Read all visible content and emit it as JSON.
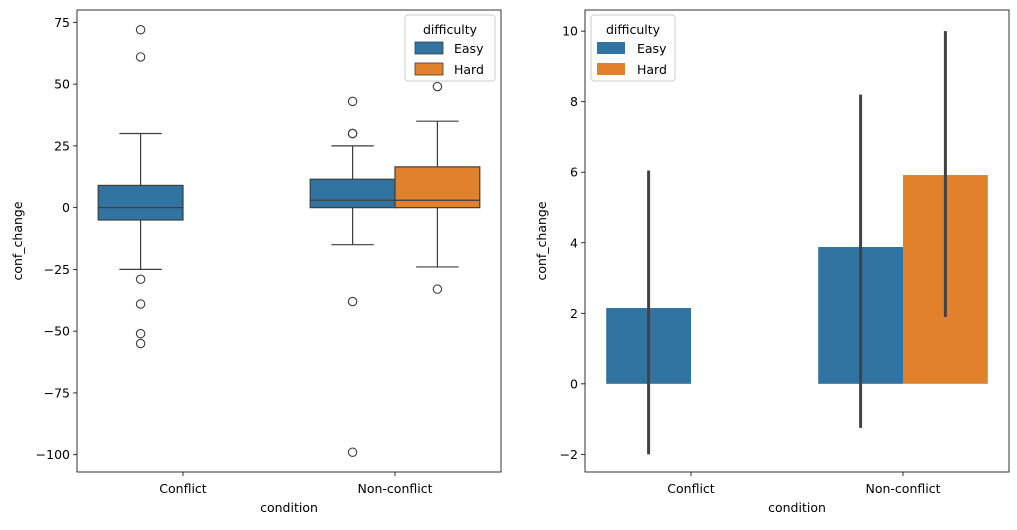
{
  "colors": {
    "Easy": "#3274a1",
    "Hard": "#e1812c",
    "ci": "#424242",
    "line": "#3d3d3d"
  },
  "chart_data": [
    {
      "type": "box",
      "xlabel": "condition",
      "ylabel": "conf_change",
      "ylim": [
        -107,
        80
      ],
      "yticks": [
        75,
        50,
        25,
        0,
        -25,
        -50,
        -75,
        -100
      ],
      "ytick_labels": [
        "75",
        "50",
        "25",
        "0",
        "−25",
        "−50",
        "−75",
        "−100"
      ],
      "categories": [
        "Conflict",
        "Non-conflict"
      ],
      "legend": {
        "title": "difficulty",
        "entries": [
          "Easy",
          "Hard"
        ],
        "position": "top-right"
      },
      "boxes": [
        {
          "category": "Conflict",
          "hue": "Easy",
          "whisker_low": -25,
          "q1": -5,
          "median": 0,
          "q3": 9,
          "whisker_high": 30,
          "outliers": [
            72,
            61,
            -29,
            -39,
            -51,
            -55
          ]
        },
        {
          "category": "Non-conflict",
          "hue": "Easy",
          "whisker_low": -15,
          "q1": 0,
          "median": 3,
          "q3": 11.5,
          "whisker_high": 25,
          "outliers": [
            43,
            30,
            30,
            -38,
            -99
          ]
        },
        {
          "category": "Non-conflict",
          "hue": "Hard",
          "whisker_low": -24,
          "q1": 0,
          "median": 3,
          "q3": 16.5,
          "whisker_high": 35,
          "outliers": [
            49,
            -33
          ]
        }
      ]
    },
    {
      "type": "bar",
      "xlabel": "condition",
      "ylabel": "conf_change",
      "ylim": [
        -2.5,
        10.6
      ],
      "yticks": [
        10,
        8,
        6,
        4,
        2,
        0,
        -2
      ],
      "ytick_labels": [
        "10",
        "8",
        "6",
        "4",
        "2",
        "0",
        "−2"
      ],
      "categories": [
        "Conflict",
        "Non-conflict"
      ],
      "legend": {
        "title": "difficulty",
        "entries": [
          "Easy",
          "Hard"
        ],
        "position": "top-left"
      },
      "bars": [
        {
          "category": "Conflict",
          "hue": "Easy",
          "value": 2.15,
          "ci": [
            -2.0,
            6.05
          ]
        },
        {
          "category": "Non-conflict",
          "hue": "Easy",
          "value": 3.88,
          "ci": [
            -1.25,
            8.2
          ]
        },
        {
          "category": "Non-conflict",
          "hue": "Hard",
          "value": 5.92,
          "ci": [
            1.9,
            10.0
          ]
        }
      ]
    }
  ]
}
